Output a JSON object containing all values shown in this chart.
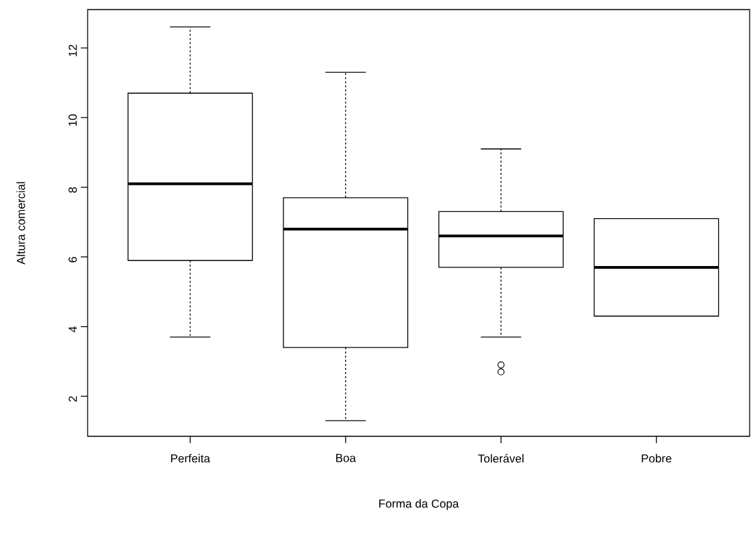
{
  "chart_data": {
    "type": "box",
    "xlabel": "Forma da Copa",
    "ylabel": "Altura comercial",
    "categories": [
      "Perfeita",
      "Boa",
      "Tolerável",
      "Pobre"
    ],
    "boxes": [
      {
        "low": 3.7,
        "q1": 5.9,
        "median": 8.1,
        "q3": 10.7,
        "high": 12.6
      },
      {
        "low": 1.3,
        "q1": 3.4,
        "median": 6.8,
        "q3": 7.7,
        "high": 11.3
      },
      {
        "low": 3.7,
        "q1": 5.7,
        "median": 6.6,
        "q3": 7.3,
        "high": 9.1,
        "outliers": [
          2.9,
          2.7
        ]
      },
      {
        "low": 4.3,
        "q1": 4.3,
        "median": 5.7,
        "q3": 7.1,
        "high": 7.1
      }
    ],
    "ylim": [
      0.85,
      13.1
    ],
    "yticks": [
      2,
      4,
      6,
      8,
      10,
      12
    ]
  }
}
